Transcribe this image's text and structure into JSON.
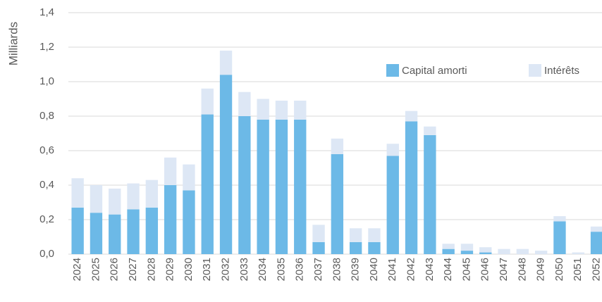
{
  "chart_data": {
    "type": "stacked_bar",
    "y_label": "Milliards",
    "categories": [
      "2024",
      "2025",
      "2026",
      "2027",
      "2028",
      "2029",
      "2030",
      "2031",
      "2032",
      "2033",
      "2034",
      "2035",
      "2036",
      "2037",
      "2038",
      "2039",
      "2040",
      "2041",
      "2042",
      "2043",
      "2044",
      "2045",
      "2046",
      "2047",
      "2048",
      "2049",
      "2050",
      "2051",
      "2052"
    ],
    "series": [
      {
        "name": "Capital amorti",
        "color": "#6cb9e7",
        "values": [
          0.27,
          0.24,
          0.23,
          0.26,
          0.27,
          0.4,
          0.37,
          0.81,
          1.04,
          0.8,
          0.78,
          0.78,
          0.78,
          0.07,
          0.58,
          0.07,
          0.07,
          0.57,
          0.77,
          0.69,
          0.03,
          0.02,
          0.01,
          0.0,
          0.0,
          0.0,
          0.19,
          0.0,
          0.13
        ]
      },
      {
        "name": "Intérêts",
        "color": "#dde7f5",
        "values": [
          0.17,
          0.16,
          0.15,
          0.15,
          0.16,
          0.16,
          0.15,
          0.15,
          0.14,
          0.14,
          0.12,
          0.11,
          0.11,
          0.1,
          0.09,
          0.08,
          0.08,
          0.07,
          0.06,
          0.05,
          0.03,
          0.04,
          0.03,
          0.03,
          0.03,
          0.02,
          0.03,
          0.01,
          0.03
        ]
      }
    ],
    "ylim": [
      0,
      1.4
    ],
    "yticks": [
      {
        "value": 0,
        "label": "0,0"
      },
      {
        "value": 0.2,
        "label": "0,2"
      },
      {
        "value": 0.4,
        "label": "0,4"
      },
      {
        "value": 0.6,
        "label": "0,6"
      },
      {
        "value": 0.8,
        "label": "0,8"
      },
      {
        "value": 1.0,
        "label": "1,0"
      },
      {
        "value": 1.2,
        "label": "1,2"
      },
      {
        "value": 1.4,
        "label": "1,4"
      }
    ],
    "grid": true,
    "legend": "top-right"
  }
}
